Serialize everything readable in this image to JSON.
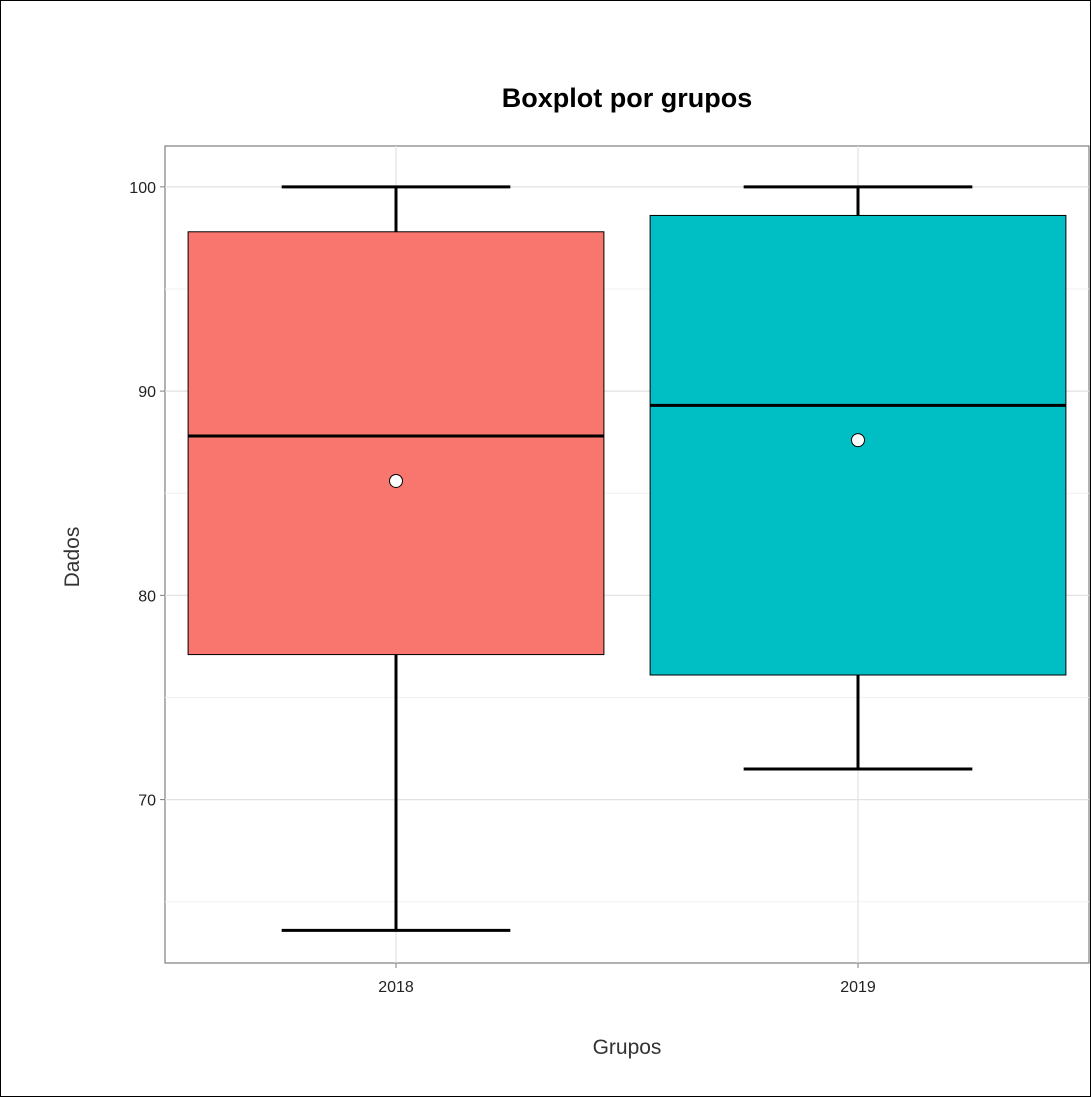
{
  "chart_data": {
    "type": "boxplot",
    "title": "Boxplot por grupos",
    "xlabel": "Grupos",
    "ylabel": "Dados",
    "categories": [
      "2018",
      "2019"
    ],
    "ylim": [
      62,
      102
    ],
    "yticks": [
      70,
      80,
      90,
      100
    ],
    "grid": true,
    "legend": "none",
    "boxes": [
      {
        "category": "2018",
        "min": 63.6,
        "q1": 77.1,
        "median": 87.8,
        "q3": 97.8,
        "max": 100,
        "mean": 85.6,
        "color": "#F8766D"
      },
      {
        "category": "2019",
        "min": 71.5,
        "q1": 76.1,
        "median": 89.3,
        "q3": 98.6,
        "max": 100,
        "mean": 87.6,
        "color": "#00BFC4"
      }
    ]
  }
}
